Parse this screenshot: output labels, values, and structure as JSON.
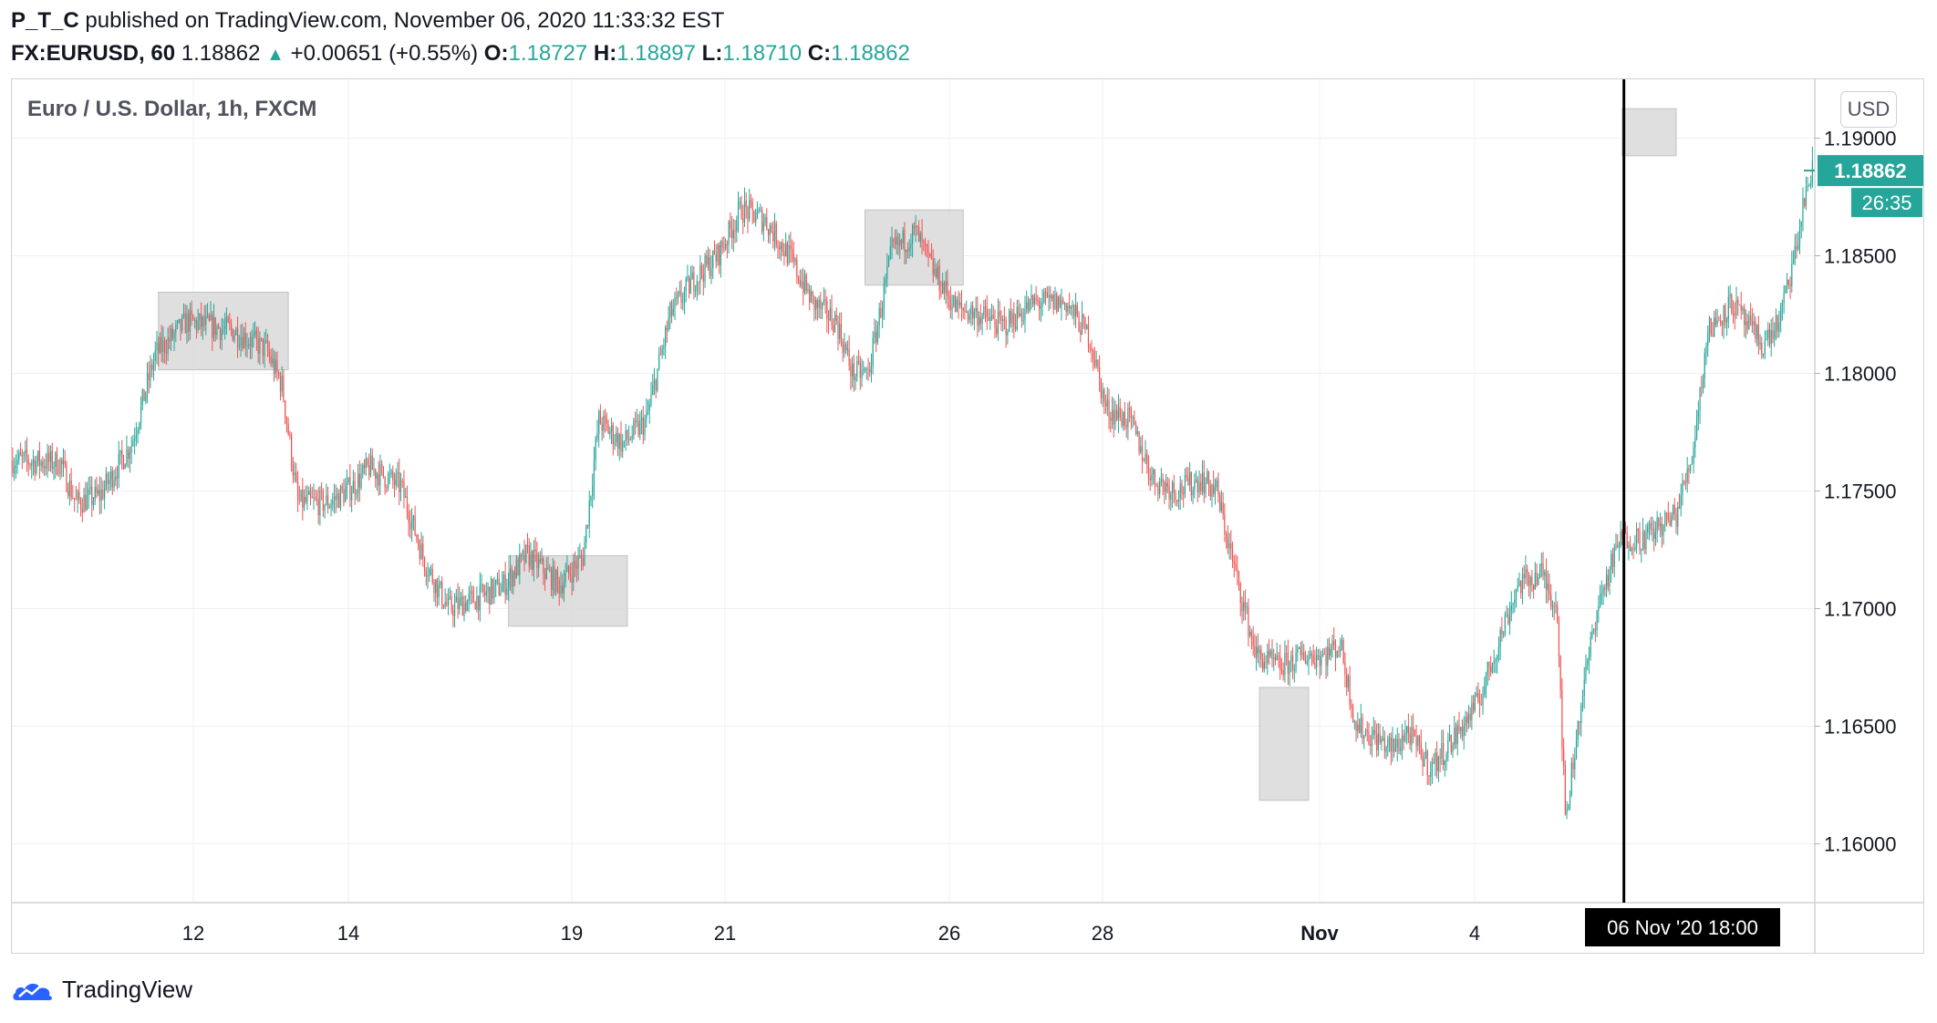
{
  "header": {
    "publisher": "P_T_C",
    "published_text": " published on TradingView.com, November 06, 2020 11:33:32 EST",
    "symbol": "FX:EURUSD, 60",
    "last_price": "1.18862",
    "up_arrow": "▲",
    "change": "+0.00651 (+0.55%)",
    "o_label": "O:",
    "o_value": "1.18727",
    "h_label": "H:",
    "h_value": "1.18897",
    "l_label": "L:",
    "l_value": "1.18710",
    "c_label": "C:",
    "c_value": "1.18862"
  },
  "legend": {
    "title": "Euro / U.S. Dollar, 1h, FXCM"
  },
  "currency_button": "USD",
  "price_tag": {
    "price": "1.18862",
    "countdown": "26:35"
  },
  "crosshair_label": {
    "date": "06 Nov '20",
    "time": "18:00"
  },
  "footer": {
    "brand": "TradingView"
  },
  "colors": {
    "up": "#26a69a",
    "down": "#ef5350",
    "grid": "#eef0f4",
    "box": "#d9d9d9",
    "axis_text": "#131722",
    "crosshair_bg": "#000000"
  },
  "chart_data": {
    "type": "candlestick",
    "title": "Euro / U.S. Dollar, 1h, FXCM",
    "ylim": [
      1.1575,
      1.1925
    ],
    "y_ticks": [
      "1.19000",
      "1.18500",
      "1.18000",
      "1.17500",
      "1.17000",
      "1.16500",
      "1.16000"
    ],
    "x_ticks": [
      "12",
      "14",
      "19",
      "21",
      "26",
      "28",
      "Nov",
      "4"
    ],
    "grid": true,
    "anchors": [
      [
        0,
        1.1763
      ],
      [
        30,
        1.1762
      ],
      [
        40,
        1.1745
      ],
      [
        55,
        1.1748
      ],
      [
        75,
        1.177
      ],
      [
        90,
        1.1808
      ],
      [
        110,
        1.1822
      ],
      [
        140,
        1.1818
      ],
      [
        160,
        1.181
      ],
      [
        170,
        1.1795
      ],
      [
        180,
        1.1745
      ],
      [
        200,
        1.1745
      ],
      [
        215,
        1.1752
      ],
      [
        225,
        1.176
      ],
      [
        245,
        1.1752
      ],
      [
        260,
        1.172
      ],
      [
        275,
        1.17
      ],
      [
        295,
        1.1705
      ],
      [
        310,
        1.171
      ],
      [
        325,
        1.1723
      ],
      [
        345,
        1.171
      ],
      [
        360,
        1.1722
      ],
      [
        370,
        1.178
      ],
      [
        385,
        1.177
      ],
      [
        400,
        1.178
      ],
      [
        415,
        1.1825
      ],
      [
        430,
        1.184
      ],
      [
        445,
        1.185
      ],
      [
        460,
        1.187
      ],
      [
        475,
        1.1865
      ],
      [
        490,
        1.185
      ],
      [
        505,
        1.183
      ],
      [
        520,
        1.1822
      ],
      [
        530,
        1.18
      ],
      [
        540,
        1.18
      ],
      [
        555,
        1.1852
      ],
      [
        570,
        1.186
      ],
      [
        580,
        1.1845
      ],
      [
        595,
        1.1828
      ],
      [
        610,
        1.1825
      ],
      [
        625,
        1.182
      ],
      [
        645,
        1.183
      ],
      [
        665,
        1.183
      ],
      [
        680,
        1.1815
      ],
      [
        690,
        1.1785
      ],
      [
        705,
        1.178
      ],
      [
        720,
        1.1755
      ],
      [
        735,
        1.175
      ],
      [
        750,
        1.1755
      ],
      [
        760,
        1.175
      ],
      [
        770,
        1.172
      ],
      [
        785,
        1.168
      ],
      [
        800,
        1.1675
      ],
      [
        815,
        1.168
      ],
      [
        828,
        1.168
      ],
      [
        838,
        1.1685
      ],
      [
        848,
        1.165
      ],
      [
        860,
        1.1645
      ],
      [
        872,
        1.164
      ],
      [
        880,
        1.1648
      ],
      [
        895,
        1.1632
      ],
      [
        910,
        1.1645
      ],
      [
        925,
        1.166
      ],
      [
        935,
        1.168
      ],
      [
        950,
        1.171
      ],
      [
        965,
        1.1715
      ],
      [
        975,
        1.17
      ],
      [
        980,
        1.161
      ],
      [
        990,
        1.166
      ],
      [
        1000,
        1.17
      ],
      [
        1015,
        1.173
      ],
      [
        1030,
        1.173
      ],
      [
        1050,
        1.174
      ],
      [
        1060,
        1.1765
      ],
      [
        1070,
        1.1818
      ],
      [
        1085,
        1.183
      ],
      [
        1095,
        1.182
      ],
      [
        1105,
        1.1812
      ],
      [
        1115,
        1.1822
      ],
      [
        1125,
        1.185
      ],
      [
        1132,
        1.1878
      ],
      [
        1136,
        1.1886
      ]
    ],
    "highlight_boxes": [
      {
        "x_from": 92,
        "x_to": 174,
        "y_from": 1.18015,
        "y_to": 1.18345
      },
      {
        "x_from": 313,
        "x_to": 388,
        "y_from": 1.16925,
        "y_to": 1.17225
      },
      {
        "x_from": 538,
        "x_to": 600,
        "y_from": 1.18375,
        "y_to": 1.18695
      },
      {
        "x_from": 787,
        "x_to": 818,
        "y_from": 1.16185,
        "y_to": 1.16665
      },
      {
        "x_from": 1016,
        "x_to": 1050,
        "y_from": 1.18925,
        "y_to": 1.19125
      }
    ],
    "crosshair_index": 1017
  }
}
